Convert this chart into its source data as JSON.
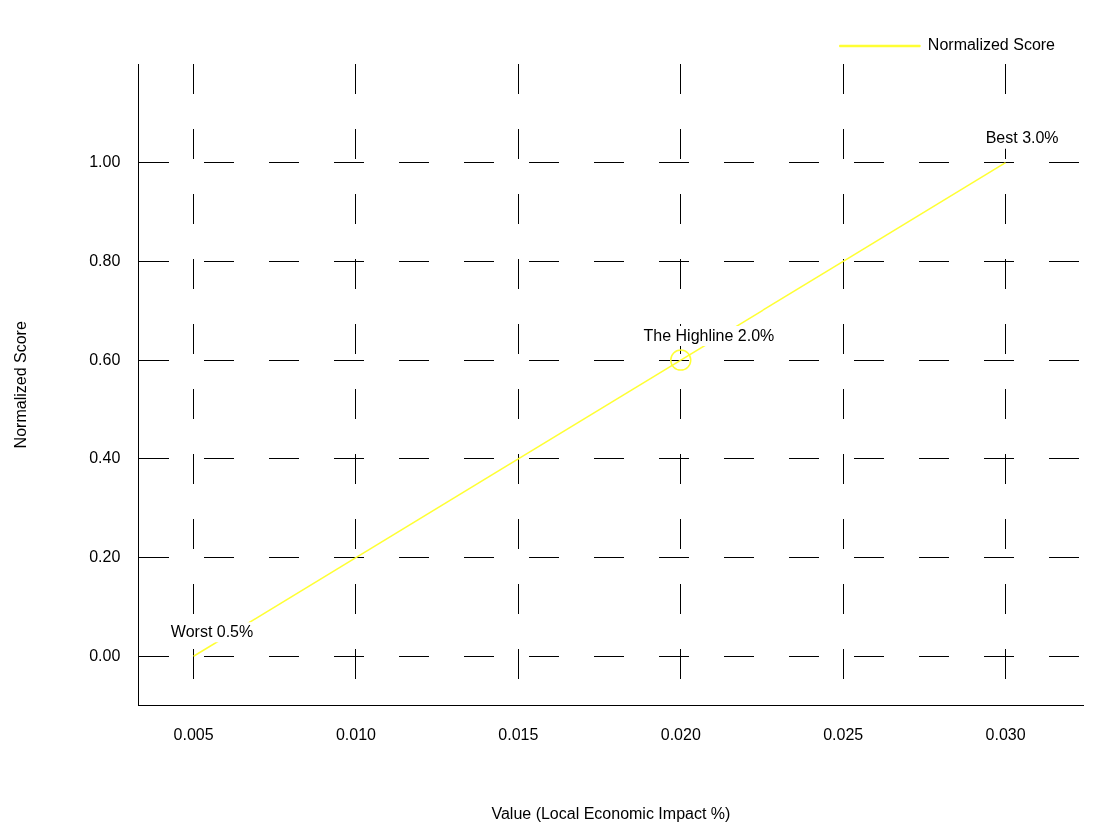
{
  "chart_data": {
    "type": "line",
    "xlabel": "Value (Local Economic Impact %)",
    "ylabel": "Normalized Score",
    "xlim": [
      0.0033,
      0.0324
    ],
    "ylim": [
      -0.1,
      1.2
    ],
    "xticks": [
      {
        "value": 0.005,
        "label": "0.005"
      },
      {
        "value": 0.01,
        "label": "0.010"
      },
      {
        "value": 0.015,
        "label": "0.015"
      },
      {
        "value": 0.02,
        "label": "0.020"
      },
      {
        "value": 0.025,
        "label": "0.025"
      },
      {
        "value": 0.03,
        "label": "0.030"
      }
    ],
    "yticks": [
      {
        "value": 0,
        "label": "0.00"
      },
      {
        "value": 0.2,
        "label": "0.20"
      },
      {
        "value": 0.4,
        "label": "0.40"
      },
      {
        "value": 0.6,
        "label": "0.60"
      },
      {
        "value": 0.8,
        "label": "0.80"
      },
      {
        "value": 1,
        "label": "1.00"
      }
    ],
    "grid": true,
    "legend": "top right",
    "line_style": "solid",
    "series": [
      {
        "name": "Normalized Score",
        "color": "#ffff33",
        "x": [
          0.005,
          0.03
        ],
        "values": [
          0,
          1
        ],
        "marker": "none"
      },
      {
        "type": "scatter",
        "color": "#ffff33",
        "x": [
          0.02
        ],
        "values": [
          0.6
        ],
        "marker": "circle"
      }
    ],
    "annotations": [
      {
        "text": "Worst 0.5%",
        "x": 0.005,
        "y": 0
      },
      {
        "text": "The Highline 2.0%",
        "x": 0.02,
        "y": 0.6
      },
      {
        "text": "Best 3.0%",
        "x": 0.03,
        "y": 1
      }
    ]
  }
}
